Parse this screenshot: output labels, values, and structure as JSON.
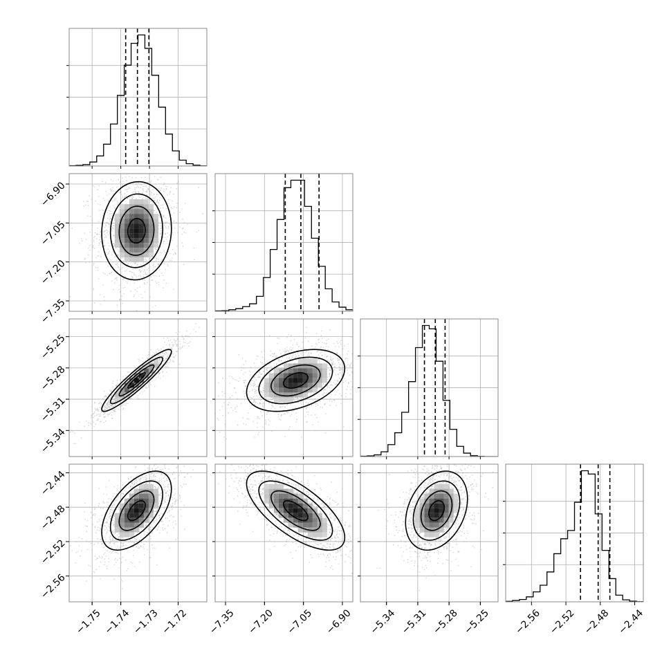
{
  "chart_data": {
    "type": "corner",
    "variables": [
      {
        "range": [
          -1.758,
          -1.71
        ],
        "ticks": [
          {
            "value": -1.75,
            "label": "−1.75"
          },
          {
            "value": -1.74,
            "label": "−1.74"
          },
          {
            "value": -1.73,
            "label": "−1.73"
          },
          {
            "value": -1.72,
            "label": "−1.72"
          }
        ],
        "quantiles": [
          -1.7383,
          -1.7342,
          -1.7302
        ],
        "hist": {
          "edges_start": -1.758,
          "bin_width": 0.0024,
          "counts": [
            2,
            4,
            8,
            24,
            60,
            130,
            250,
            420,
            600,
            730,
            780,
            700,
            540,
            350,
            190,
            90,
            35,
            14,
            5,
            1
          ]
        }
      },
      {
        "range": [
          -7.39,
          -6.86
        ],
        "ticks": [
          {
            "value": -7.35,
            "label": "−7.35"
          },
          {
            "value": -7.2,
            "label": "−7.20"
          },
          {
            "value": -7.05,
            "label": "−7.05"
          },
          {
            "value": -6.9,
            "label": "−6.90"
          }
        ],
        "quantiles": [
          -7.12,
          -7.06,
          -6.99
        ],
        "hist": {
          "edges_start": -7.39,
          "bin_width": 0.0265,
          "counts": [
            2,
            3,
            8,
            14,
            25,
            40,
            80,
            180,
            330,
            490,
            660,
            700,
            700,
            560,
            390,
            240,
            120,
            50,
            22,
            8
          ]
        }
      },
      {
        "range": [
          -5.365,
          -5.233
        ],
        "ticks": [
          {
            "value": -5.34,
            "label": "−5.34"
          },
          {
            "value": -5.31,
            "label": "−5.31"
          },
          {
            "value": -5.28,
            "label": "−5.28"
          },
          {
            "value": -5.25,
            "label": "−5.25"
          }
        ],
        "quantiles": [
          -5.3036,
          -5.2932,
          -5.2838
        ],
        "hist": {
          "edges_start": -5.365,
          "bin_width": 0.0066,
          "counts": [
            2,
            4,
            10,
            28,
            70,
            140,
            260,
            440,
            640,
            770,
            750,
            560,
            330,
            160,
            60,
            20,
            5,
            1,
            0,
            0
          ]
        }
      },
      {
        "range": [
          -2.59,
          -2.43
        ],
        "ticks": [
          {
            "value": -2.56,
            "label": "−2.56"
          },
          {
            "value": -2.52,
            "label": "−2.52"
          },
          {
            "value": -2.48,
            "label": "−2.48"
          },
          {
            "value": -2.44,
            "label": "−2.44"
          }
        ],
        "quantiles": [
          -2.503,
          -2.4825,
          -2.4689
        ],
        "hist": {
          "edges_start": -2.59,
          "bin_width": 0.008,
          "counts": [
            3,
            8,
            14,
            30,
            60,
            100,
            180,
            290,
            380,
            430,
            600,
            790,
            770,
            530,
            310,
            140,
            40,
            12,
            4,
            1
          ]
        }
      }
    ],
    "pairs": [
      {
        "row": 1,
        "col": 0,
        "center": [
          -1.7345,
          -7.08
        ],
        "sigma": [
          0.0045,
          0.07
        ],
        "rho": 0.05
      },
      {
        "row": 2,
        "col": 0,
        "center": [
          -1.7345,
          -5.292
        ],
        "sigma": [
          0.0045,
          0.011
        ],
        "rho": 0.93
      },
      {
        "row": 2,
        "col": 1,
        "center": [
          -7.08,
          -5.292
        ],
        "sigma": [
          0.07,
          0.011
        ],
        "rho": 0.38
      },
      {
        "row": 3,
        "col": 0,
        "center": [
          -1.7345,
          -2.484
        ],
        "sigma": [
          0.0045,
          0.017
        ],
        "rho": 0.55
      },
      {
        "row": 3,
        "col": 1,
        "center": [
          -7.08,
          -2.484
        ],
        "sigma": [
          0.07,
          0.017
        ],
        "rho": -0.68
      },
      {
        "row": 3,
        "col": 2,
        "center": [
          -5.292,
          -2.484
        ],
        "sigma": [
          0.011,
          0.017
        ],
        "rho": 0.3
      }
    ],
    "contour_levels_sigma": [
      1.0,
      1.5,
      2.0
    ],
    "grid": true,
    "colors": {
      "line": "#000000",
      "grid": "#b0b0b0",
      "scatter": "#bbbbbb",
      "frame": "#888888"
    }
  }
}
